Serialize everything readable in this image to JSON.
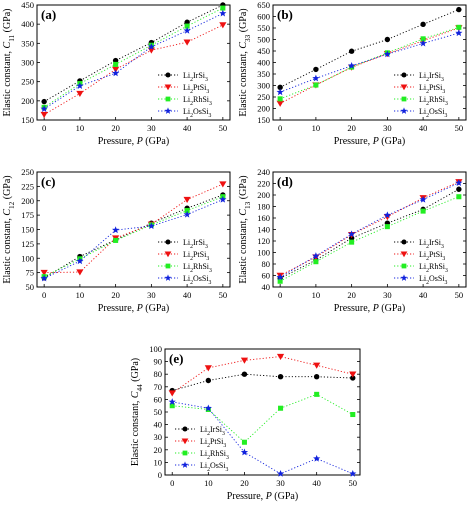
{
  "chart_data": [
    {
      "type": "line",
      "panel_label": "(a)",
      "xlabel": "Pressure, P (GPa)",
      "ylabel": "Elastic constant, C11 (GPa)",
      "x": [
        0,
        10,
        20,
        30,
        40,
        50
      ],
      "xlim": [
        -2,
        52
      ],
      "ylim": [
        150,
        450
      ],
      "yticks": [
        150,
        200,
        250,
        300,
        350,
        400,
        450
      ],
      "legend_position": "bottom-right",
      "series": [
        {
          "name": "Li2IrSi3",
          "color": "#000000",
          "marker": "circle",
          "values": [
            198,
            252,
            305,
            352,
            405,
            450
          ]
        },
        {
          "name": "Li2PtSi3",
          "color": "#ee1111",
          "marker": "triangle-down",
          "values": [
            164,
            219,
            282,
            332,
            353,
            398
          ]
        },
        {
          "name": "Li2RhSi3",
          "color": "#22ee22",
          "marker": "square",
          "values": [
            183,
            245,
            295,
            345,
            395,
            442
          ]
        },
        {
          "name": "Li2OsSi3",
          "color": "#1122dd",
          "marker": "star",
          "values": [
            179,
            239,
            272,
            341,
            383,
            428
          ]
        }
      ]
    },
    {
      "type": "line",
      "panel_label": "(b)",
      "xlabel": "Pressure, P (GPa)",
      "ylabel": "Elastic constant, C33 (GPa)",
      "x": [
        0,
        10,
        20,
        30,
        40,
        50
      ],
      "xlim": [
        -2,
        52
      ],
      "ylim": [
        150,
        650
      ],
      "yticks": [
        150,
        200,
        250,
        300,
        350,
        400,
        450,
        500,
        550,
        600,
        650
      ],
      "legend_position": "bottom-right",
      "series": [
        {
          "name": "Li2IrSi3",
          "color": "#000000",
          "marker": "circle",
          "values": [
            292,
            370,
            449,
            500,
            566,
            630
          ]
        },
        {
          "name": "Li2PtSi3",
          "color": "#ee1111",
          "marker": "triangle-down",
          "values": [
            222,
            302,
            379,
            438,
            495,
            550
          ]
        },
        {
          "name": "Li2RhSi3",
          "color": "#22ee22",
          "marker": "square",
          "values": [
            242,
            302,
            380,
            442,
            503,
            553
          ]
        },
        {
          "name": "Li2OsSi3",
          "color": "#1122dd",
          "marker": "star",
          "values": [
            271,
            331,
            386,
            436,
            483,
            528
          ]
        }
      ]
    },
    {
      "type": "line",
      "panel_label": "(c)",
      "xlabel": "Pressure, P (GPa)",
      "ylabel": "Elastic constant, C12 (GPa)",
      "x": [
        0,
        10,
        20,
        30,
        40,
        50
      ],
      "xlim": [
        -2,
        52
      ],
      "ylim": [
        50,
        250
      ],
      "yticks": [
        50,
        75,
        100,
        125,
        150,
        175,
        200,
        225,
        250
      ],
      "legend_position": "bottom-right",
      "series": [
        {
          "name": "Li2IrSi3",
          "color": "#000000",
          "marker": "circle",
          "values": [
            66,
            103,
            132,
            161,
            187,
            210
          ]
        },
        {
          "name": "Li2PtSi3",
          "color": "#ee1111",
          "marker": "triangle-down",
          "values": [
            75,
            76,
            135,
            159,
            202,
            229
          ]
        },
        {
          "name": "Li2RhSi3",
          "color": "#22ee22",
          "marker": "square",
          "values": [
            68,
            99,
            131,
            158,
            183,
            207
          ]
        },
        {
          "name": "Li2OsSi3",
          "color": "#1122dd",
          "marker": "star",
          "values": [
            65,
            95,
            149,
            156,
            176,
            202
          ]
        }
      ]
    },
    {
      "type": "line",
      "panel_label": "(d)",
      "xlabel": "Pressure, P (GPa)",
      "ylabel": "Elastic constant, C13 (GPa)",
      "x": [
        0,
        10,
        20,
        30,
        40,
        50
      ],
      "xlim": [
        -2,
        52
      ],
      "ylim": [
        40,
        240
      ],
      "yticks": [
        40,
        60,
        80,
        100,
        120,
        140,
        160,
        180,
        200,
        220,
        240
      ],
      "legend_position": "bottom-right",
      "series": [
        {
          "name": "Li2IrSi3",
          "color": "#000000",
          "marker": "circle",
          "values": [
            55,
            87,
            125,
            151,
            175,
            210
          ]
        },
        {
          "name": "Li2PtSi3",
          "color": "#ee1111",
          "marker": "triangle-down",
          "values": [
            60,
            92,
            131,
            162,
            195,
            223
          ]
        },
        {
          "name": "Li2RhSi3",
          "color": "#22ee22",
          "marker": "square",
          "values": [
            50,
            84,
            118,
            145,
            172,
            197
          ]
        },
        {
          "name": "Li2OsSi3",
          "color": "#1122dd",
          "marker": "star",
          "values": [
            57,
            94,
            132,
            165,
            192,
            221
          ]
        }
      ]
    },
    {
      "type": "line",
      "panel_label": "(e)",
      "xlabel": "Pressure, P (GPa)",
      "ylabel": "Elastic constant, C44 (GPa)",
      "x": [
        0,
        10,
        20,
        30,
        40,
        50
      ],
      "xlim": [
        -2,
        52
      ],
      "ylim": [
        0,
        100
      ],
      "yticks": [
        0,
        10,
        20,
        30,
        40,
        50,
        60,
        70,
        80,
        90,
        100
      ],
      "legend_position": "bottom-left",
      "series": [
        {
          "name": "Li2IrSi3",
          "color": "#000000",
          "marker": "circle",
          "values": [
            67,
            75,
            80,
            78,
            78,
            77
          ]
        },
        {
          "name": "Li2PtSi3",
          "color": "#ee1111",
          "marker": "triangle-down",
          "values": [
            65,
            85,
            91,
            94,
            87,
            80
          ]
        },
        {
          "name": "Li2RhSi3",
          "color": "#22ee22",
          "marker": "square",
          "values": [
            55,
            52,
            26,
            53,
            64,
            48
          ]
        },
        {
          "name": "Li2OsSi3",
          "color": "#1122dd",
          "marker": "star",
          "values": [
            58,
            53,
            18,
            1,
            13,
            1
          ]
        }
      ]
    }
  ]
}
